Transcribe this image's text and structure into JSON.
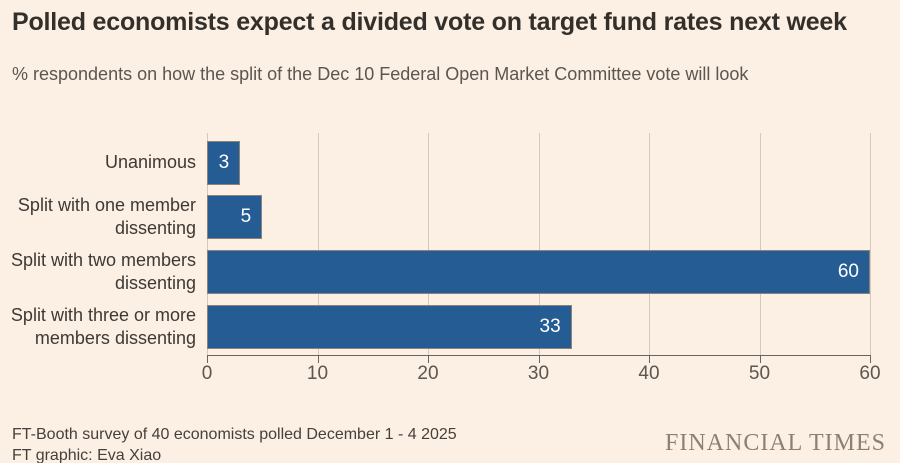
{
  "chart_data": {
    "type": "bar",
    "orientation": "horizontal",
    "title": "Polled economists expect a divided vote on target fund rates next week",
    "subtitle": "% respondents on how the split of the Dec 10 Federal Open Market Committee vote will look",
    "categories": [
      "Unanimous",
      "Split with one member dissenting",
      "Split with two members dissenting",
      "Split with three or more members dissenting"
    ],
    "values": [
      3,
      5,
      60,
      33
    ],
    "xlim": [
      0,
      60
    ],
    "xticks": [
      0,
      10,
      20,
      30,
      40,
      50,
      60
    ],
    "grid": "vertical gridlines",
    "legend_position": "none",
    "value_label_placement": "inside bar right end"
  },
  "footer": {
    "source_line1": "FT-Booth survey of 40 economists polled December 1 - 4 2025",
    "source_line2": "FT graphic: Eva Xiao",
    "brand": "FINANCIAL TIMES"
  },
  "colors": {
    "background": "#FCEFE3",
    "bar": "#255C94",
    "bar_border": "#8B8278",
    "value_label": "#FFFFFF",
    "gridline": "#D3C9BD",
    "axis": "#6A645E",
    "title_text": "#33302C",
    "muted_text": "#5B5650",
    "brand_text": "#8A8174"
  }
}
